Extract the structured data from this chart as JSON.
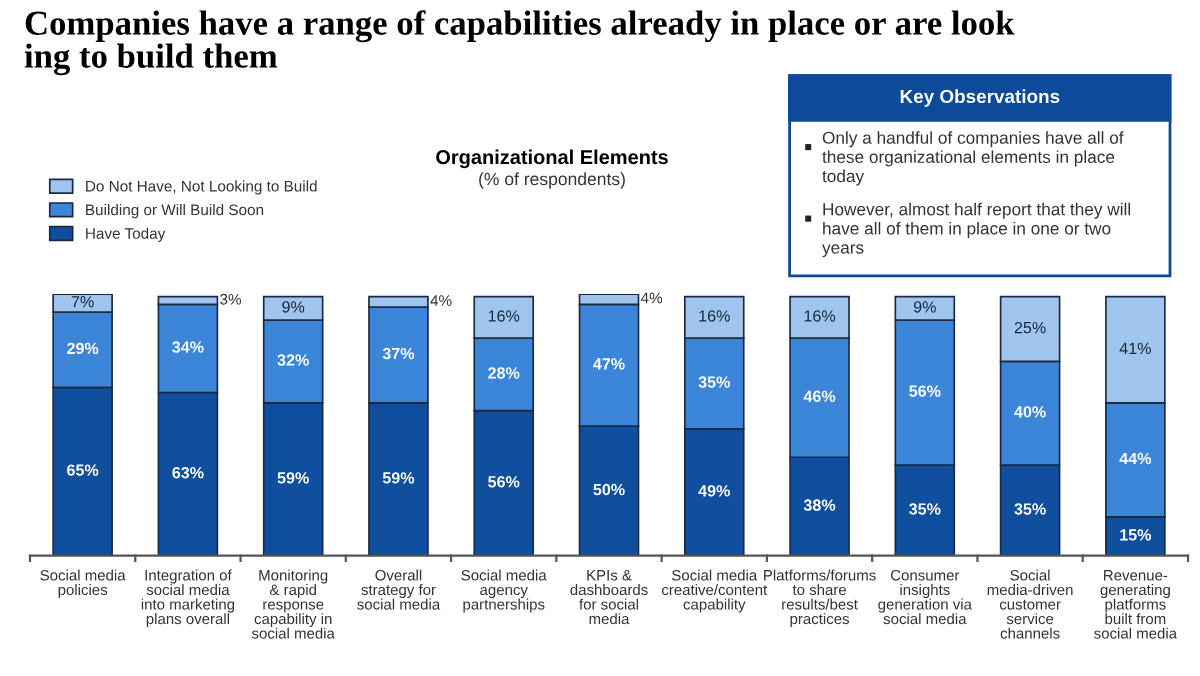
{
  "chart_data": {
    "type": "bar",
    "stacked": true,
    "title": "Companies have a range of capabilities already in place or are look\ning to build them",
    "subtitle": "Organizational Elements\n(% of respondents)",
    "categories": [
      "Social media\npolicies",
      "Integration of\nsocial media\ninto marketing\nplans overall",
      "Monitoring\n& rapid\nresponse\ncapability in\nsocial media",
      "Overall\nstrategy for\nsocial media",
      "Social media\nagency\npartnerships",
      "KPIs &\ndashboards\nfor social\nmedia",
      "Social media\ncreative/content\ncapability",
      "Platforms/forums\nto share\nresults/best\npractices",
      "Consumer\ninsights\ngeneration via\nsocial media",
      "Social\nmedia-driven\ncustomer\nservice\nchannels",
      "Revenue-\ngenerating\nplatforms\nbuilt from\nsocial media"
    ],
    "series": [
      {
        "name": "Have Today",
        "color": "#0f4f9e",
        "values": [
          65,
          63,
          59,
          59,
          56,
          50,
          49,
          38,
          35,
          35,
          15
        ],
        "value_labels": [
          "65%",
          "63%",
          "59%",
          "59%",
          "56%",
          "50%",
          "49%",
          "38%",
          "35%",
          "35%",
          "15%"
        ]
      },
      {
        "name": "Building or Will Build Soon",
        "color": "#3b86d8",
        "values": [
          29,
          34,
          32,
          37,
          28,
          47,
          35,
          46,
          56,
          40,
          44
        ],
        "value_labels": [
          "29%",
          "34%",
          "32%",
          "37%",
          "28%",
          "47%",
          "35%",
          "46%",
          "56%",
          "40%",
          "44%"
        ]
      },
      {
        "name": "Do Not Have, Not Looking to Build",
        "color": "#9fc5ee",
        "values": [
          7,
          3,
          9,
          4,
          16,
          4,
          16,
          16,
          9,
          25,
          41
        ],
        "value_labels": [
          "7%",
          "3%",
          "9%",
          "4%",
          "16%",
          "4%",
          "16%",
          "16%",
          "9%",
          "25%",
          "41%"
        ]
      }
    ],
    "legend": "top left",
    "grid": false,
    "annotations": [
      "Key Observations",
      "Only a handful of companies have all of\nthese organizational elements in place\ntoday",
      "However, almost half report that they will\nhave all of them in place in one or two\nyears"
    ]
  }
}
